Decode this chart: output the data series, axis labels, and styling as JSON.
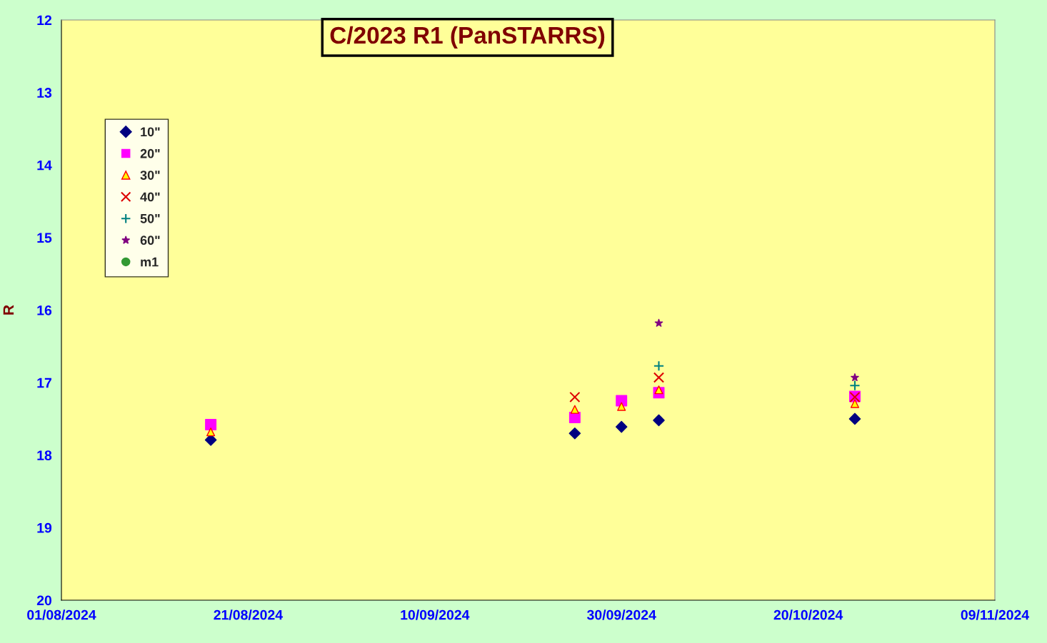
{
  "chart_data": {
    "type": "scatter",
    "title": "C/2023 R1 (PanSTARRS)",
    "ylabel": "R",
    "xlim": [
      "2024-08-01",
      "2024-11-09"
    ],
    "xticks": [
      {
        "value": "2024-08-01",
        "label": "01/08/2024"
      },
      {
        "value": "2024-08-21",
        "label": "21/08/2024"
      },
      {
        "value": "2024-09-10",
        "label": "10/09/2024"
      },
      {
        "value": "2024-09-30",
        "label": "30/09/2024"
      },
      {
        "value": "2024-10-20",
        "label": "20/10/2024"
      },
      {
        "value": "2024-11-09",
        "label": "09/11/2024"
      }
    ],
    "ylim": [
      20,
      12
    ],
    "yticks": [
      12,
      13,
      14,
      15,
      16,
      17,
      18,
      19,
      20
    ],
    "grid": false,
    "legend": "top left",
    "series": [
      {
        "name": "10\"",
        "color": "#000080",
        "marker": "diamond",
        "x": [
          "2024-08-17",
          "2024-09-25",
          "2024-09-30",
          "2024-10-04",
          "2024-10-25"
        ],
        "values": [
          17.79,
          17.7,
          17.61,
          17.52,
          17.5
        ]
      },
      {
        "name": "20\"",
        "color": "#ff00ff",
        "marker": "square",
        "x": [
          "2024-08-17",
          "2024-09-25",
          "2024-09-30",
          "2024-10-04",
          "2024-10-25"
        ],
        "values": [
          17.58,
          17.48,
          17.25,
          17.14,
          17.19
        ]
      },
      {
        "name": "30\"",
        "color": "#ffff00",
        "marker": "triangle",
        "x": [
          "2024-08-17",
          "2024-09-25",
          "2024-09-30",
          "2024-10-04",
          "2024-10-25"
        ],
        "values": [
          17.68,
          17.37,
          17.33,
          17.1,
          17.29
        ]
      },
      {
        "name": "40\"",
        "color": "#dd0000",
        "marker": "cross",
        "x": [
          "2024-09-25",
          "2024-10-04",
          "2024-10-25"
        ],
        "values": [
          17.2,
          16.93,
          17.2
        ]
      },
      {
        "name": "50\"",
        "color": "#008080",
        "marker": "plus",
        "x": [
          "2024-10-04",
          "2024-10-25"
        ],
        "values": [
          16.77,
          17.04
        ]
      },
      {
        "name": "60\"",
        "color": "#800080",
        "marker": "star",
        "x": [
          "2024-10-04",
          "2024-10-25"
        ],
        "values": [
          16.18,
          16.93
        ]
      },
      {
        "name": "m1",
        "color": "#339933",
        "marker": "circle"
      }
    ]
  }
}
